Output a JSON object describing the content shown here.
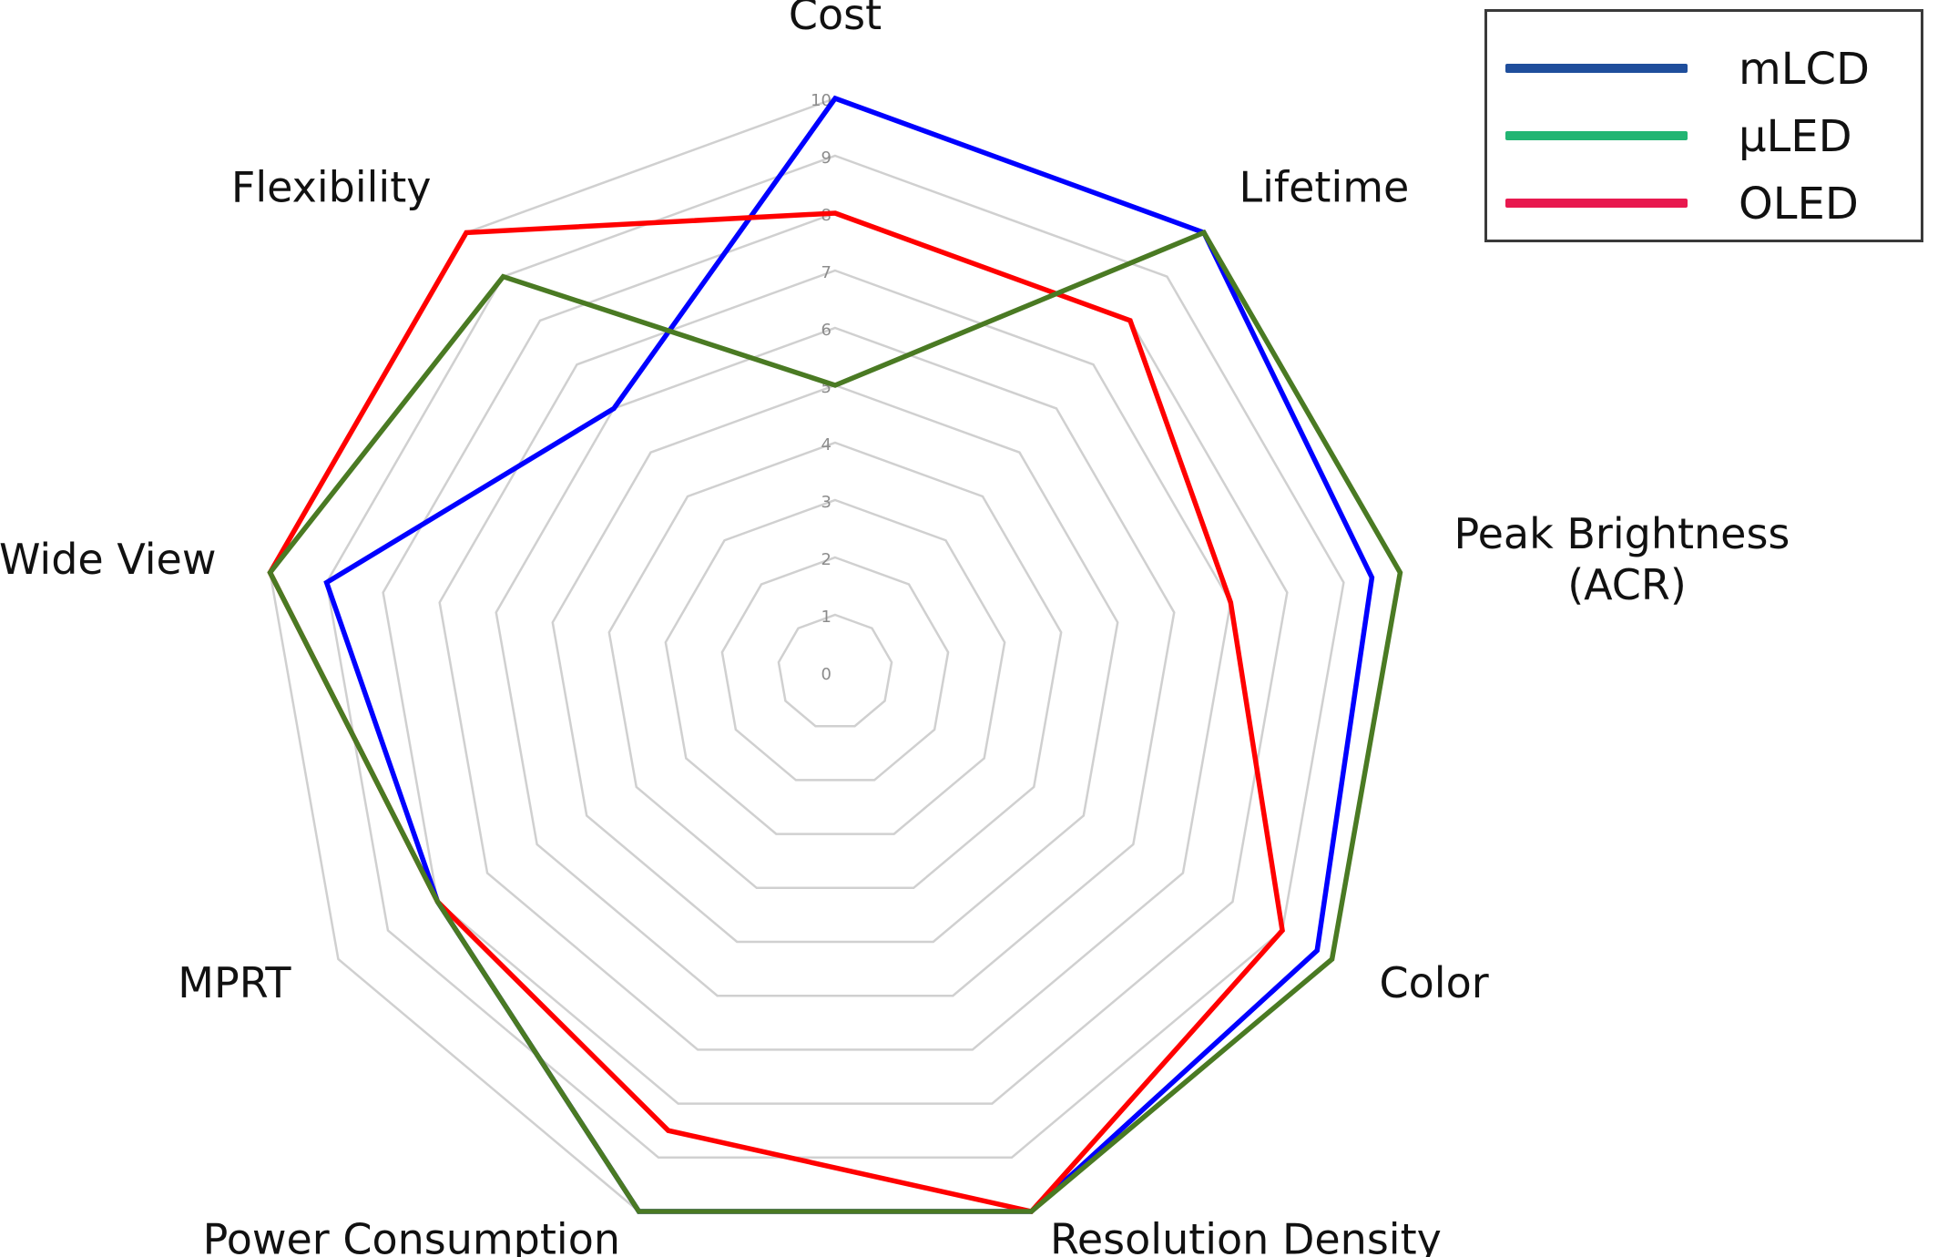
{
  "chart_data": {
    "type": "radar",
    "axes": [
      "Cost",
      "Lifetime",
      "Peak Brightness\n(ACR)",
      "Color",
      "Resolution Density",
      "Power Consumption",
      "MPRT",
      "Wide View",
      "Flexibility"
    ],
    "axis_label_lines": [
      [
        "Cost"
      ],
      [
        "Lifetime"
      ],
      [
        "Peak Brightness",
        "(ACR)"
      ],
      [
        "Color"
      ],
      [
        "Resolution Density"
      ],
      [
        "Power Consumption"
      ],
      [
        "MPRT"
      ],
      [
        "Wide View"
      ],
      [
        "Flexibility"
      ]
    ],
    "rlim": [
      0,
      10
    ],
    "ticks": [
      0,
      1,
      2,
      3,
      4,
      5,
      6,
      7,
      8,
      9,
      10
    ],
    "grid": true,
    "legend_position": "top-right",
    "series": [
      {
        "name": "mLCD",
        "color": "#0000ff",
        "values": [
          10,
          10,
          9.5,
          9.7,
          10,
          10,
          8,
          9,
          6
        ]
      },
      {
        "name": "OLED",
        "color": "#ff0000",
        "values": [
          8,
          8,
          7,
          9,
          10,
          8.5,
          8,
          10,
          10
        ]
      },
      {
        "name": "μLED",
        "color": "#4a7a23",
        "values": [
          5,
          10,
          10,
          10,
          10,
          10,
          8,
          10,
          9
        ]
      }
    ],
    "legend": [
      {
        "name": "mLCD",
        "color": "#1f4e9c"
      },
      {
        "name": "μLED",
        "color": "#22b573"
      },
      {
        "name": "OLED",
        "color": "#e8194f"
      }
    ]
  }
}
